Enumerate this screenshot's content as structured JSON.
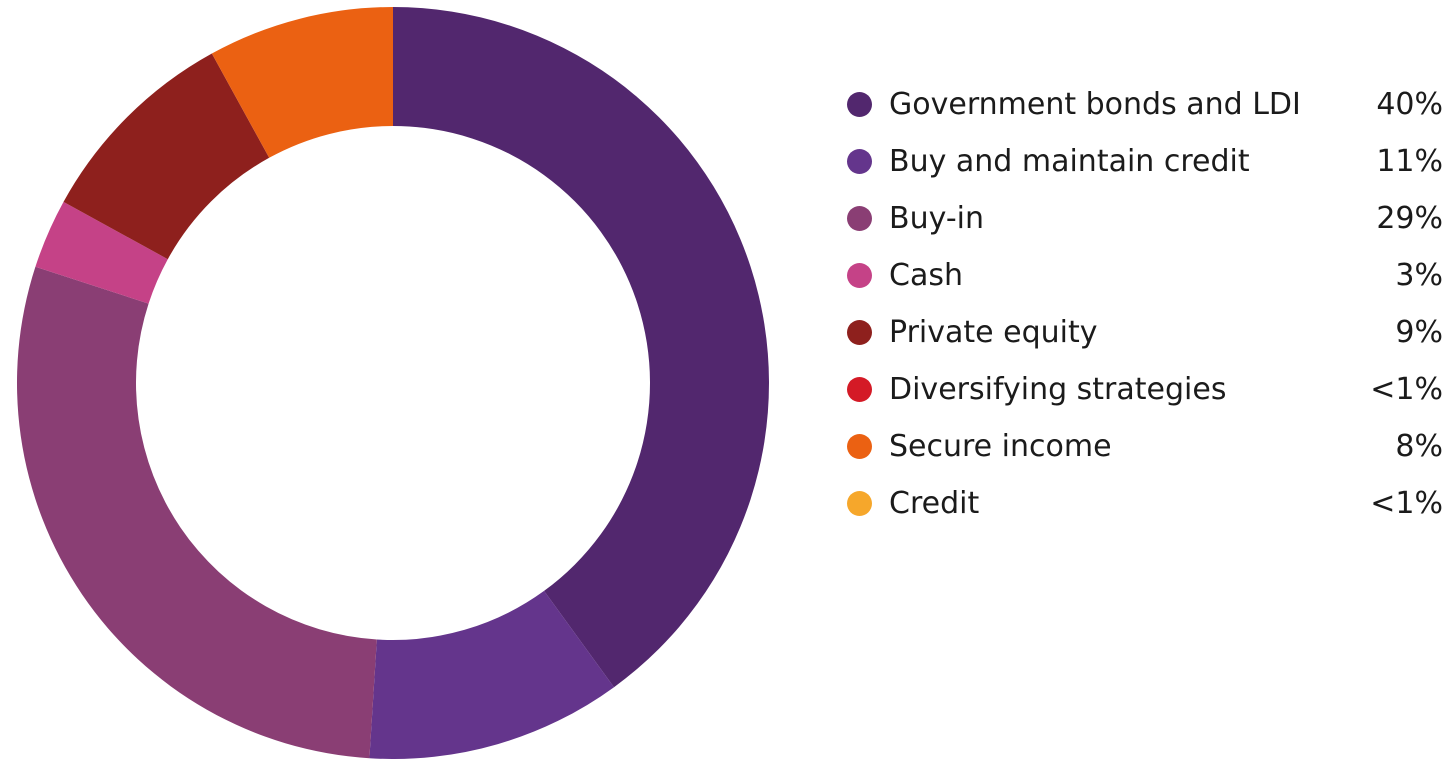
{
  "chart_data": {
    "type": "pie",
    "donut": true,
    "legend_position": "right",
    "series": [
      {
        "name": "Government bonds and LDI",
        "label": "40%",
        "value": 40,
        "color": "#52276e"
      },
      {
        "name": "Buy and maintain credit",
        "label": "11%",
        "value": 11,
        "color": "#64358c"
      },
      {
        "name": "Buy-in",
        "label": "29%",
        "value": 29,
        "color": "#8a3e74"
      },
      {
        "name": "Cash",
        "label": "3%",
        "value": 3,
        "color": "#c54287"
      },
      {
        "name": "Private equity",
        "label": "9%",
        "value": 9,
        "color": "#8e201d"
      },
      {
        "name": "Diversifying strategies",
        "label": "<1%",
        "value": 0,
        "color": "#d41a26"
      },
      {
        "name": "Secure income",
        "label": "8%",
        "value": 8,
        "color": "#eb6112"
      },
      {
        "name": "Credit",
        "label": "<1%",
        "value": 0,
        "color": "#f6a72b"
      }
    ]
  }
}
